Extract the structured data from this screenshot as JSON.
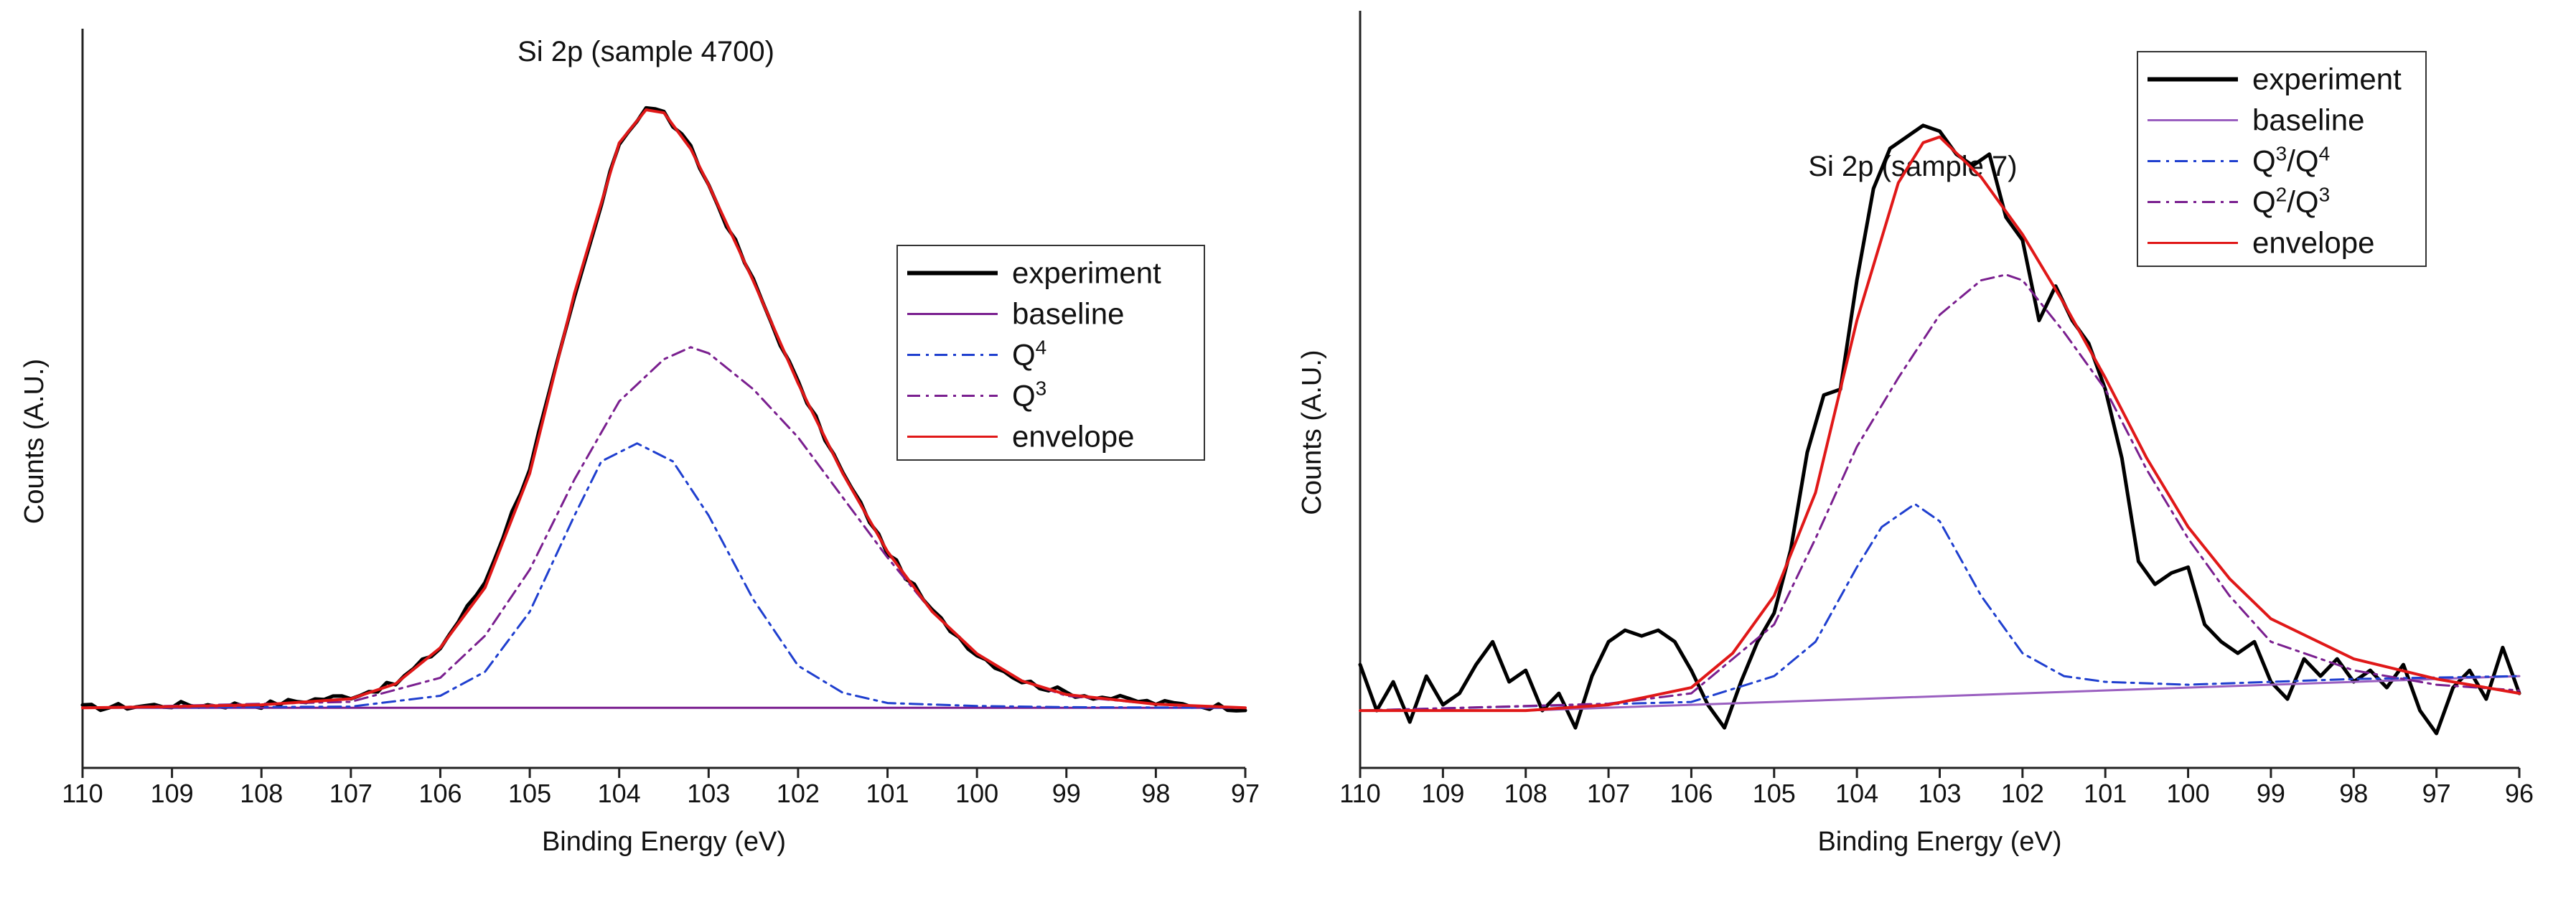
{
  "chart_data": [
    {
      "type": "line",
      "title": "Si 2p (sample 4700)",
      "xlabel": "Binding Energy (eV)",
      "ylabel": "Counts (A.U.)",
      "xlim": [
        110,
        97
      ],
      "x_reversed": true,
      "ylim": [
        -0.1,
        1.13
      ],
      "y_ticks_shown": false,
      "grid": false,
      "legend_position": "right",
      "x_ticks": [
        110,
        109,
        108,
        107,
        106,
        105,
        104,
        103,
        102,
        101,
        100,
        99,
        98,
        97
      ],
      "series": [
        {
          "name": "experiment",
          "color": "#000000",
          "style": "solid",
          "noisy": true,
          "x": [
            110,
            109,
            108,
            107,
            106.5,
            106,
            105.5,
            105,
            104.5,
            104,
            103.7,
            103.5,
            103.2,
            103,
            102.5,
            102,
            101.5,
            101,
            100.5,
            100,
            99.5,
            99,
            98,
            97
          ],
          "y": [
            0.0,
            0.005,
            0.005,
            0.02,
            0.04,
            0.1,
            0.21,
            0.4,
            0.68,
            0.94,
            1.0,
            0.99,
            0.93,
            0.87,
            0.71,
            0.54,
            0.39,
            0.26,
            0.16,
            0.09,
            0.045,
            0.025,
            0.008,
            0.0
          ]
        },
        {
          "name": "baseline",
          "color": "#7a1f8f",
          "style": "solid",
          "x": [
            110,
            97
          ],
          "y": [
            0.0,
            0.0
          ]
        },
        {
          "name": "Q4",
          "label_main": "Q",
          "label_sup": "4",
          "color": "#1f3fcf",
          "style": "dashdot",
          "x": [
            110,
            107,
            106,
            105.5,
            105,
            104.5,
            104.2,
            103.8,
            103.4,
            103,
            102.5,
            102,
            101.5,
            101,
            100,
            99,
            97
          ],
          "y": [
            0.0,
            0.002,
            0.02,
            0.06,
            0.16,
            0.32,
            0.41,
            0.44,
            0.41,
            0.32,
            0.18,
            0.07,
            0.025,
            0.008,
            0.003,
            0.001,
            0.0
          ]
        },
        {
          "name": "Q3",
          "label_main": "Q",
          "label_sup": "3",
          "color": "#7a1f8f",
          "style": "dashdot",
          "x": [
            110,
            107,
            106,
            105.5,
            105,
            104.5,
            104,
            103.5,
            103.2,
            103,
            102.5,
            102,
            101.5,
            101,
            100.5,
            100,
            99.5,
            99,
            98,
            97
          ],
          "y": [
            0.0,
            0.01,
            0.05,
            0.12,
            0.23,
            0.38,
            0.51,
            0.58,
            0.6,
            0.59,
            0.53,
            0.45,
            0.35,
            0.25,
            0.16,
            0.09,
            0.045,
            0.02,
            0.006,
            0.0
          ]
        },
        {
          "name": "envelope",
          "color": "#e01818",
          "style": "solid",
          "x": [
            110,
            109,
            108,
            107,
            106.5,
            106,
            105.5,
            105,
            104.5,
            104,
            103.7,
            103.5,
            103.2,
            103,
            102.5,
            102,
            101.5,
            101,
            100.5,
            100,
            99.5,
            99,
            98,
            97
          ],
          "y": [
            0.0,
            0.002,
            0.005,
            0.015,
            0.04,
            0.1,
            0.2,
            0.39,
            0.69,
            0.94,
            0.995,
            0.99,
            0.93,
            0.87,
            0.71,
            0.54,
            0.39,
            0.26,
            0.16,
            0.09,
            0.045,
            0.022,
            0.006,
            0.0
          ]
        }
      ]
    },
    {
      "type": "line",
      "title": "Si 2p (sample 7)",
      "xlabel": "Binding Energy (eV)",
      "ylabel": "Counts (A.U.)",
      "xlim": [
        110,
        96
      ],
      "x_reversed": true,
      "ylim": [
        -0.1,
        1.22
      ],
      "y_ticks_shown": false,
      "grid": false,
      "legend_position": "top-right",
      "x_ticks": [
        110,
        109,
        108,
        107,
        106,
        105,
        104,
        103,
        102,
        101,
        100,
        99,
        98,
        97,
        96
      ],
      "series": [
        {
          "name": "experiment",
          "color": "#000000",
          "style": "solid",
          "noisy": true,
          "x": [
            110,
            109.8,
            109.6,
            109.4,
            109.2,
            109,
            108.8,
            108.6,
            108.4,
            108.2,
            108,
            107.8,
            107.6,
            107.4,
            107.2,
            107,
            106.8,
            106.6,
            106.4,
            106.2,
            106,
            105.8,
            105.6,
            105.4,
            105.2,
            105,
            104.8,
            104.6,
            104.4,
            104.2,
            104,
            103.8,
            103.6,
            103.4,
            103.2,
            103,
            102.8,
            102.6,
            102.4,
            102.2,
            102,
            101.8,
            101.6,
            101.4,
            101.2,
            101,
            100.8,
            100.6,
            100.4,
            100.2,
            100,
            99.8,
            99.6,
            99.4,
            99.2,
            99,
            98.8,
            98.6,
            98.4,
            98.2,
            98,
            97.8,
            97.6,
            97.4,
            97.2,
            97,
            96.8,
            96.6,
            96.4,
            96.2,
            96
          ],
          "y": [
            0.08,
            0.0,
            0.05,
            -0.02,
            0.06,
            0.01,
            0.03,
            0.08,
            0.12,
            0.05,
            0.07,
            0.0,
            0.03,
            -0.03,
            0.06,
            0.12,
            0.14,
            0.13,
            0.14,
            0.12,
            0.07,
            0.01,
            -0.03,
            0.05,
            0.12,
            0.17,
            0.28,
            0.45,
            0.55,
            0.56,
            0.75,
            0.91,
            0.98,
            1.0,
            1.02,
            1.01,
            0.97,
            0.95,
            0.97,
            0.86,
            0.82,
            0.68,
            0.74,
            0.68,
            0.64,
            0.56,
            0.44,
            0.26,
            0.22,
            0.24,
            0.25,
            0.15,
            0.12,
            0.1,
            0.12,
            0.05,
            0.02,
            0.09,
            0.06,
            0.09,
            0.05,
            0.07,
            0.04,
            0.08,
            0.0,
            -0.04,
            0.04,
            0.07,
            0.02,
            0.11,
            0.03
          ]
        },
        {
          "name": "baseline",
          "color": "#9a5fc0",
          "style": "solid",
          "x": [
            110,
            108,
            106,
            104,
            102,
            100,
            98,
            96
          ],
          "y": [
            0.0,
            0.0,
            0.01,
            0.02,
            0.03,
            0.04,
            0.05,
            0.06
          ]
        },
        {
          "name": "Q3/Q4",
          "label_main": "Q",
          "label_sup": "3",
          "label_mid": "/Q",
          "label_sup2": "4",
          "color": "#1f3fcf",
          "style": "dashdot",
          "x": [
            110,
            106,
            105,
            104.5,
            104,
            103.7,
            103.3,
            103,
            102.5,
            102,
            101.5,
            101,
            100,
            99,
            98,
            96
          ],
          "y": [
            0.0,
            0.015,
            0.06,
            0.12,
            0.25,
            0.32,
            0.36,
            0.33,
            0.2,
            0.1,
            0.06,
            0.05,
            0.045,
            0.05,
            0.055,
            0.06
          ]
        },
        {
          "name": "Q2/Q3",
          "label_main": "Q",
          "label_sup": "2",
          "label_mid": "/Q",
          "label_sup2": "3",
          "color": "#7a1f8f",
          "style": "dashdot",
          "x": [
            110,
            107,
            106,
            105,
            104.5,
            104,
            103.5,
            103,
            102.5,
            102.2,
            102,
            101.5,
            101,
            100.5,
            100,
            99.5,
            99,
            98,
            97,
            96
          ],
          "y": [
            0.0,
            0.012,
            0.03,
            0.15,
            0.3,
            0.46,
            0.58,
            0.69,
            0.75,
            0.76,
            0.75,
            0.66,
            0.56,
            0.42,
            0.3,
            0.2,
            0.12,
            0.07,
            0.045,
            0.035
          ]
        },
        {
          "name": "envelope",
          "color": "#e01818",
          "style": "solid",
          "x": [
            110,
            108,
            107,
            106,
            105.5,
            105,
            104.5,
            104,
            103.5,
            103.2,
            103,
            102.5,
            102,
            101.5,
            101,
            100.5,
            100,
            99.5,
            99,
            98,
            97,
            96
          ],
          "y": [
            0.0,
            0.0,
            0.01,
            0.04,
            0.1,
            0.2,
            0.38,
            0.68,
            0.92,
            0.99,
            1.0,
            0.93,
            0.83,
            0.71,
            0.58,
            0.44,
            0.32,
            0.23,
            0.16,
            0.09,
            0.055,
            0.03
          ]
        }
      ]
    }
  ]
}
